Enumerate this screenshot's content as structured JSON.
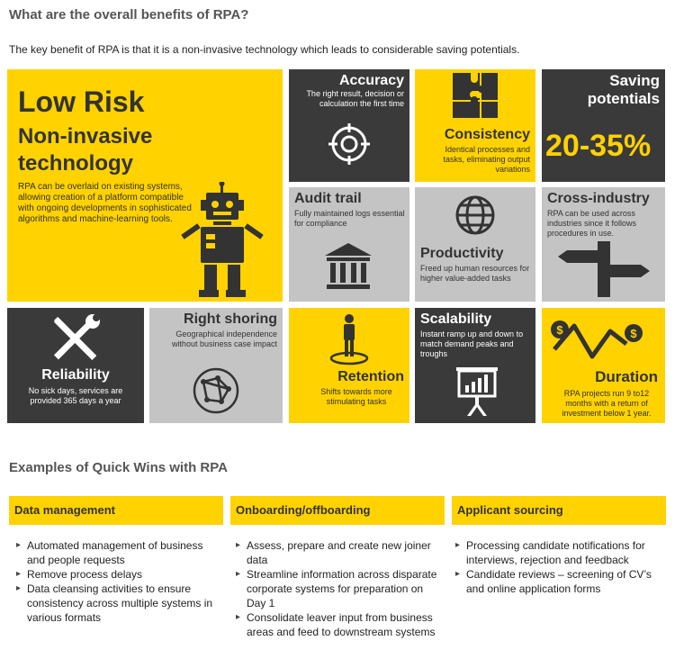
{
  "heading": "What are the overall benefits of RPA?",
  "intro": "The key benefit of RPA is that it is a non-invasive technology which leads to considerable saving potentials.",
  "low_risk": {
    "title": "Low Risk",
    "subtitle_1": "Non-invasive",
    "subtitle_2": "technology",
    "text": "RPA can be overlaid on existing systems, allowing creation of a platform compatible with ongoing developments in sophisticated algorithms and machine-learning tools."
  },
  "accuracy": {
    "title": "Accuracy",
    "text": "The right result, decision or calculation the first time"
  },
  "consistency": {
    "title": "Consistency",
    "text": "Identical processes and tasks, eliminating output variations"
  },
  "saving": {
    "title_1": "Saving",
    "title_2": "potentials",
    "value": "20-35%"
  },
  "audit": {
    "title": "Audit trail",
    "text": "Fully maintained logs essential for compliance"
  },
  "productivity": {
    "title": "Productivity",
    "text": "Freed up human resources for higher value-added tasks"
  },
  "cross": {
    "title": "Cross-industry",
    "text": "RPA can be used across industries since it follows procedures in use."
  },
  "reliability": {
    "title": "Reliability",
    "text": "No sick days, services are provided 365 days a year"
  },
  "rightshoring": {
    "title": "Right shoring",
    "text": "Geographical independence without business case impact"
  },
  "retention": {
    "title": "Retention",
    "text": "Shifts towards more stimulating tasks"
  },
  "scalability": {
    "title": "Scalability",
    "text": "Instant ramp up and down to match demand peaks and troughs"
  },
  "duration": {
    "title": "Duration",
    "text": "RPA projects run 9 to12 months with a return of investment below 1 year."
  },
  "quickwins": {
    "heading": "Examples of Quick Wins with RPA",
    "columns": [
      {
        "title": "Data management",
        "items": [
          "Automated management of business and people requests",
          "Remove process delays",
          "Data cleansing activities to ensure consistency across multiple systems in various formats"
        ]
      },
      {
        "title": "Onboarding/offboarding",
        "items": [
          "Assess, prepare and create new joiner data",
          "Streamline information across disparate corporate systems for preparation on Day 1",
          "Consolidate leaver input from business areas and feed to downstream systems"
        ]
      },
      {
        "title": "Applicant sourcing",
        "items": [
          "Processing candidate notifications for interviews, rejection and feedback",
          "Candidate reviews – screening of CV’s and online application forms"
        ]
      }
    ]
  },
  "colors": {
    "yellow": "#FFD200",
    "dark": "#3a3a3a",
    "grey": "#c4c4c4"
  }
}
